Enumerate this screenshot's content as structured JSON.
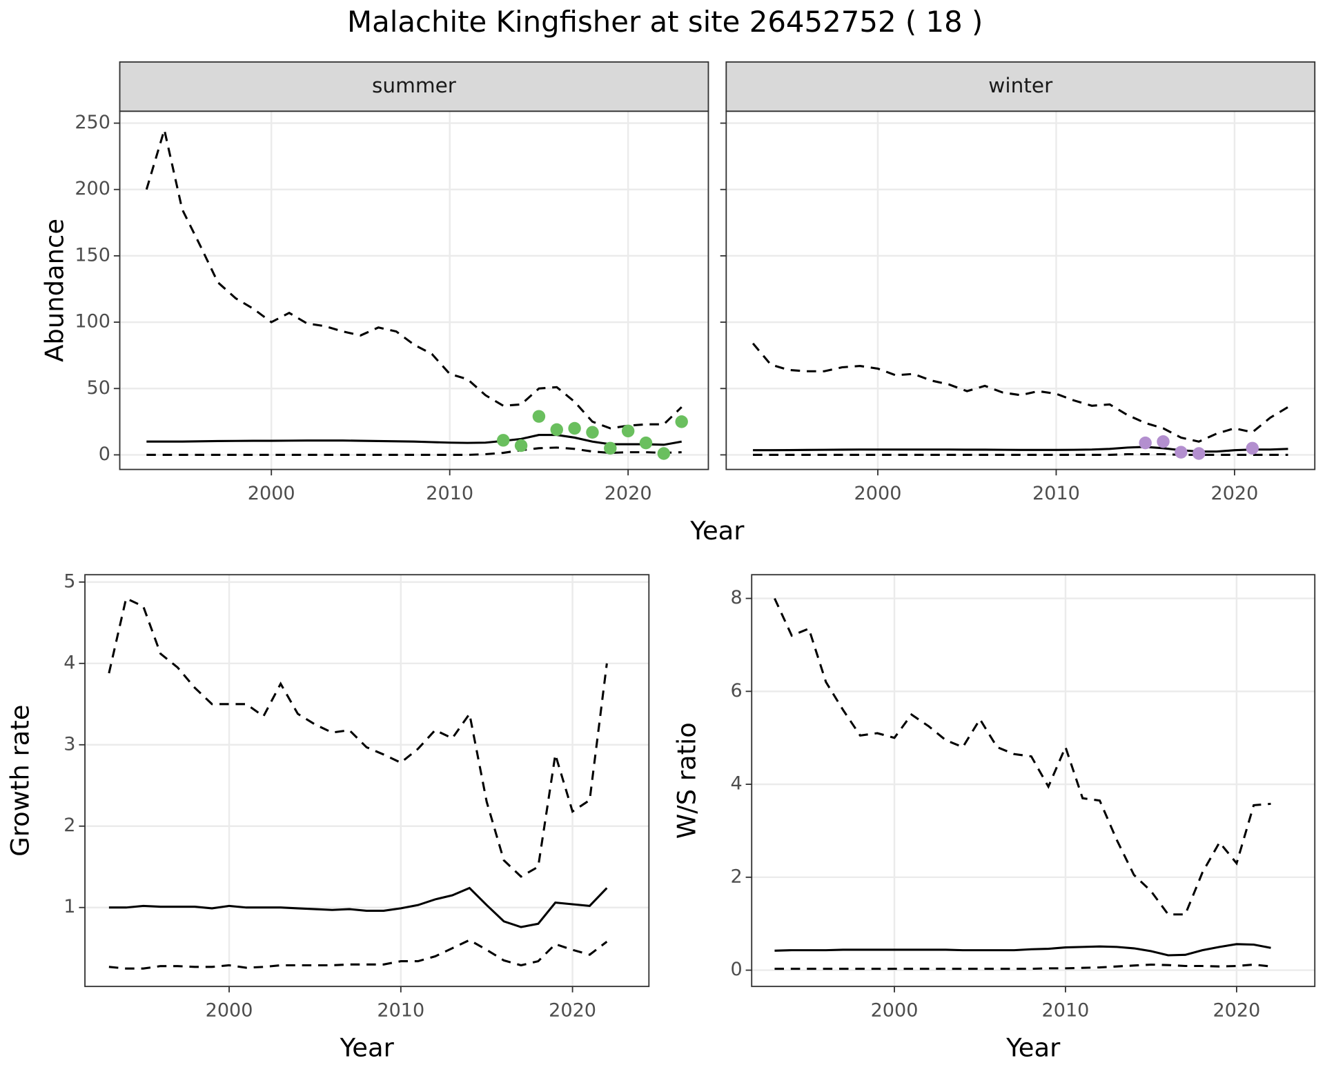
{
  "title": "Malachite Kingfisher at site 26452752 ( 18 )",
  "chart_data": [
    {
      "type": "line",
      "strip": "summer",
      "ylabel": "Abundance",
      "xlabel": "Year",
      "grid": true,
      "ytick_labels": true,
      "x": [
        1993,
        1994,
        1995,
        1996,
        1997,
        1998,
        1999,
        2000,
        2001,
        2002,
        2003,
        2004,
        2005,
        2006,
        2007,
        2008,
        2009,
        2010,
        2011,
        2012,
        2013,
        2014,
        2015,
        2016,
        2017,
        2018,
        2019,
        2020,
        2021,
        2022,
        2023
      ],
      "xlim": [
        1991.5,
        2024.5
      ],
      "xticks": [
        2000,
        2010,
        2020
      ],
      "ylim": [
        -11,
        259
      ],
      "yticks": [
        0,
        50,
        100,
        150,
        200,
        250
      ],
      "series": [
        {
          "color": "#000000",
          "line": "solid",
          "values": [
            10,
            10,
            10,
            10.2,
            10.4,
            10.5,
            10.6,
            10.6,
            10.7,
            10.8,
            10.8,
            10.8,
            10.6,
            10.4,
            10.2,
            10,
            9.6,
            9.2,
            9,
            9.2,
            10.5,
            12,
            15,
            15,
            13,
            10,
            8,
            8,
            8,
            7.6,
            10
          ]
        },
        {
          "color": "#000000",
          "line": "dashed",
          "values": [
            200,
            245,
            185,
            158,
            130,
            118,
            110,
            100,
            107,
            99,
            97,
            93,
            90,
            96,
            93,
            83,
            76,
            61,
            57,
            45,
            37,
            38,
            50,
            51,
            40,
            25,
            20,
            22,
            23,
            23,
            36
          ]
        },
        {
          "color": "#000000",
          "line": "dashed",
          "values": [
            0,
            0,
            0,
            0,
            0,
            0,
            0,
            0,
            0,
            0,
            0,
            0,
            0,
            0,
            0,
            0,
            0,
            0,
            0,
            0.5,
            1.5,
            3.5,
            5,
            5.5,
            4.5,
            2.5,
            1.5,
            2,
            2,
            1.5,
            2
          ]
        },
        {
          "color": "#6abf5e",
          "style": "points",
          "x": [
            2013,
            2014,
            2015,
            2016,
            2017,
            2018,
            2019,
            2020,
            2021,
            2022,
            2023
          ],
          "values": [
            11,
            7,
            29,
            19,
            20,
            17,
            5,
            18,
            9,
            1,
            25
          ]
        }
      ]
    },
    {
      "type": "line",
      "strip": "winter",
      "grid": true,
      "ytick_labels": false,
      "x": [
        1993,
        1994,
        1995,
        1996,
        1997,
        1998,
        1999,
        2000,
        2001,
        2002,
        2003,
        2004,
        2005,
        2006,
        2007,
        2008,
        2009,
        2010,
        2011,
        2012,
        2013,
        2014,
        2015,
        2016,
        2017,
        2018,
        2019,
        2020,
        2021,
        2022,
        2023
      ],
      "xlim": [
        1991.5,
        2024.5
      ],
      "xticks": [
        2000,
        2010,
        2020
      ],
      "ylim": [
        -11,
        259
      ],
      "yticks": [
        0,
        50,
        100,
        150,
        200,
        250
      ],
      "series": [
        {
          "color": "#000000",
          "line": "solid",
          "values": [
            3.5,
            3.5,
            3.6,
            3.7,
            3.8,
            3.9,
            4,
            4,
            4,
            4,
            4,
            4,
            3.9,
            3.9,
            3.8,
            3.7,
            3.7,
            3.7,
            3.8,
            4,
            4.5,
            5.5,
            6,
            5,
            3.5,
            2.5,
            2.5,
            3.5,
            4,
            4,
            4.5
          ]
        },
        {
          "color": "#000000",
          "line": "dashed",
          "values": [
            84,
            68,
            64,
            63,
            63,
            66,
            67,
            65,
            60,
            61,
            56,
            53,
            48,
            52,
            47,
            45,
            48,
            46,
            41,
            37,
            38,
            30,
            24,
            20,
            13,
            10,
            16,
            20,
            17,
            28,
            36
          ]
        },
        {
          "color": "#000000",
          "line": "dashed",
          "values": [
            0,
            0,
            0,
            0,
            0,
            0,
            0,
            0,
            0,
            0,
            0,
            0,
            0,
            0,
            0,
            0,
            0,
            0,
            0,
            0,
            0,
            0.5,
            0.5,
            0.5,
            0,
            0,
            0,
            0,
            0,
            0,
            0
          ]
        },
        {
          "color": "#b38fcf",
          "style": "points",
          "x": [
            2015,
            2016,
            2017,
            2018,
            2021
          ],
          "values": [
            9,
            10,
            2,
            1,
            5
          ]
        }
      ]
    },
    {
      "type": "line",
      "ylabel": "Growth rate",
      "xlabel": "Year",
      "grid": true,
      "ytick_labels": true,
      "x": [
        1993,
        1994,
        1995,
        1996,
        1997,
        1998,
        1999,
        2000,
        2001,
        2002,
        2003,
        2004,
        2005,
        2006,
        2007,
        2008,
        2009,
        2010,
        2011,
        2012,
        2013,
        2014,
        2015,
        2016,
        2017,
        2018,
        2019,
        2020,
        2021,
        2022
      ],
      "xlim": [
        1991.6,
        2024.45
      ],
      "xticks": [
        2000,
        2010,
        2020
      ],
      "ylim": [
        0.03,
        5.09
      ],
      "yticks": [
        1,
        2,
        3,
        4,
        5
      ],
      "series": [
        {
          "color": "#000000",
          "line": "solid",
          "values": [
            1.0,
            1.0,
            1.02,
            1.01,
            1.01,
            1.01,
            0.99,
            1.02,
            1.0,
            1.0,
            1.0,
            0.99,
            0.98,
            0.97,
            0.98,
            0.96,
            0.96,
            0.99,
            1.03,
            1.1,
            1.15,
            1.24,
            1.03,
            0.83,
            0.76,
            0.8,
            1.06,
            1.04,
            1.02,
            1.24
          ]
        },
        {
          "color": "#000000",
          "line": "dashed",
          "values": [
            3.88,
            4.8,
            4.7,
            4.12,
            3.95,
            3.7,
            3.5,
            3.5,
            3.5,
            3.35,
            3.75,
            3.38,
            3.25,
            3.15,
            3.18,
            2.97,
            2.88,
            2.78,
            2.95,
            3.18,
            3.08,
            3.38,
            2.3,
            1.58,
            1.38,
            1.5,
            2.88,
            2.18,
            2.32,
            4.0
          ]
        },
        {
          "color": "#000000",
          "line": "dashed",
          "values": [
            0.27,
            0.25,
            0.25,
            0.28,
            0.28,
            0.27,
            0.27,
            0.29,
            0.26,
            0.27,
            0.29,
            0.29,
            0.29,
            0.29,
            0.3,
            0.3,
            0.3,
            0.34,
            0.34,
            0.4,
            0.5,
            0.6,
            0.48,
            0.35,
            0.29,
            0.34,
            0.55,
            0.48,
            0.42,
            0.58
          ]
        }
      ]
    },
    {
      "type": "line",
      "ylabel": "W/S ratio",
      "xlabel": "Year",
      "grid": true,
      "ytick_labels": true,
      "x": [
        1993,
        1994,
        1995,
        1996,
        1997,
        1998,
        1999,
        2000,
        2001,
        2002,
        2003,
        2004,
        2005,
        2006,
        2007,
        2008,
        2009,
        2010,
        2011,
        2012,
        2013,
        2014,
        2015,
        2016,
        2017,
        2018,
        2019,
        2020,
        2021,
        2022
      ],
      "xlim": [
        1991.66,
        2024.57
      ],
      "xticks": [
        2000,
        2010,
        2020
      ],
      "ylim": [
        -0.35,
        8.51
      ],
      "yticks": [
        0,
        2,
        4,
        6,
        8
      ],
      "series": [
        {
          "color": "#000000",
          "line": "solid",
          "values": [
            0.42,
            0.43,
            0.43,
            0.43,
            0.44,
            0.44,
            0.44,
            0.44,
            0.44,
            0.44,
            0.44,
            0.43,
            0.43,
            0.43,
            0.43,
            0.45,
            0.46,
            0.49,
            0.5,
            0.51,
            0.5,
            0.47,
            0.41,
            0.32,
            0.33,
            0.43,
            0.5,
            0.56,
            0.55,
            0.48
          ]
        },
        {
          "color": "#000000",
          "line": "dashed",
          "values": [
            8.0,
            7.2,
            7.35,
            6.2,
            5.6,
            5.05,
            5.1,
            5.0,
            5.5,
            5.25,
            4.95,
            4.8,
            5.4,
            4.8,
            4.65,
            4.6,
            3.95,
            4.8,
            3.7,
            3.65,
            2.8,
            2.05,
            1.7,
            1.2,
            1.2,
            2.1,
            2.75,
            2.3,
            3.55,
            3.58
          ]
        },
        {
          "color": "#000000",
          "line": "dashed",
          "values": [
            0.03,
            0.03,
            0.03,
            0.03,
            0.03,
            0.03,
            0.03,
            0.03,
            0.03,
            0.03,
            0.03,
            0.03,
            0.03,
            0.03,
            0.03,
            0.03,
            0.04,
            0.04,
            0.05,
            0.06,
            0.08,
            0.1,
            0.12,
            0.11,
            0.09,
            0.09,
            0.08,
            0.09,
            0.12,
            0.08
          ]
        }
      ]
    }
  ]
}
